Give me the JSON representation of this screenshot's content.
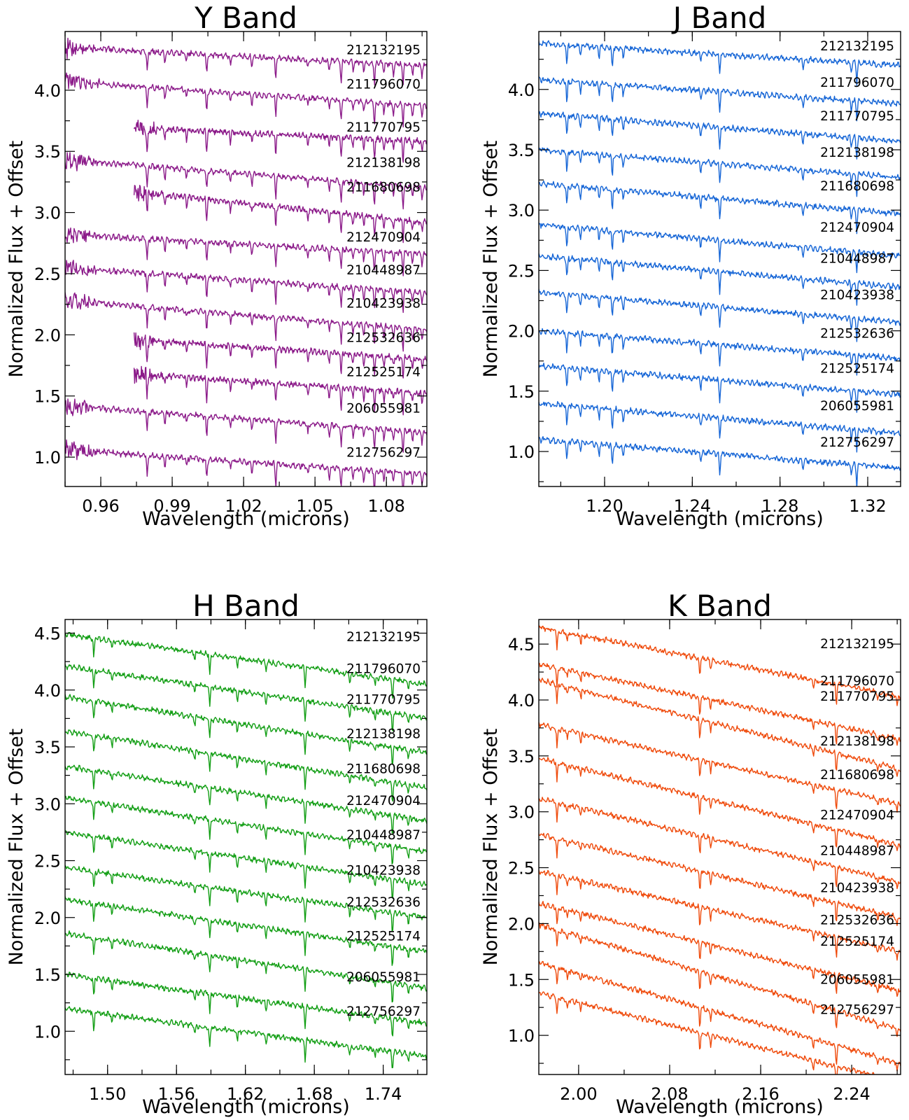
{
  "chart_data": [
    {
      "type": "line",
      "title": "Y Band",
      "xlabel": "Wavelength (microns)",
      "ylabel": "Normalized Flux + Offset",
      "color": "#8b1a89",
      "xlim": [
        0.945,
        1.097
      ],
      "ylim": [
        0.76,
        4.48
      ],
      "xticks": [
        0.96,
        0.99,
        1.02,
        1.05,
        1.08
      ],
      "xtick_labels": [
        "0.96",
        "0.99",
        "1.02",
        "1.05",
        "1.08"
      ],
      "yticks": [
        1.0,
        1.5,
        2.0,
        2.5,
        3.0,
        3.5,
        4.0
      ],
      "ytick_labels": [
        "1.0",
        "1.5",
        "2.0",
        "2.5",
        "3.0",
        "3.5",
        "4.0"
      ],
      "series": [
        {
          "name": "212132195",
          "start": 4.35,
          "end": 4.2,
          "x_start": 0.945
        },
        {
          "name": "211796070",
          "start": 4.07,
          "end": 3.87,
          "x_start": 0.945
        },
        {
          "name": "211770795",
          "start": 3.72,
          "end": 3.58,
          "x_start": 0.974
        },
        {
          "name": "212138198",
          "start": 3.43,
          "end": 3.2,
          "x_start": 0.945
        },
        {
          "name": "211680698",
          "start": 3.23,
          "end": 2.92,
          "x_start": 0.974
        },
        {
          "name": "212470904",
          "start": 2.82,
          "end": 2.66,
          "x_start": 0.945
        },
        {
          "name": "210448987",
          "start": 2.55,
          "end": 2.34,
          "x_start": 0.945
        },
        {
          "name": "210423938",
          "start": 2.28,
          "end": 2.04,
          "x_start": 0.945
        },
        {
          "name": "212532636",
          "start": 2.0,
          "end": 1.8,
          "x_start": 0.974
        },
        {
          "name": "212525174",
          "start": 1.72,
          "end": 1.52,
          "x_start": 0.974
        },
        {
          "name": "206055981",
          "start": 1.42,
          "end": 1.2,
          "x_start": 0.945
        },
        {
          "name": "212756297",
          "start": 1.06,
          "end": 0.86,
          "x_start": 0.945
        }
      ]
    },
    {
      "type": "line",
      "title": "J Band",
      "xlabel": "Wavelength (microns)",
      "ylabel": "Normalized Flux + Offset",
      "color": "#1565d6",
      "xlim": [
        1.17,
        1.335
      ],
      "ylim": [
        0.71,
        4.48
      ],
      "xticks": [
        1.2,
        1.24,
        1.28,
        1.32
      ],
      "xtick_labels": [
        "1.20",
        "1.24",
        "1.28",
        "1.32"
      ],
      "yticks": [
        1.0,
        1.5,
        2.0,
        2.5,
        3.0,
        3.5,
        4.0
      ],
      "ytick_labels": [
        "1.0",
        "1.5",
        "2.0",
        "2.5",
        "3.0",
        "3.5",
        "4.0"
      ],
      "series": [
        {
          "name": "212132195",
          "start": 4.38,
          "end": 4.2
        },
        {
          "name": "211796070",
          "start": 4.08,
          "end": 3.88
        },
        {
          "name": "211770795",
          "start": 3.8,
          "end": 3.57
        },
        {
          "name": "212138198",
          "start": 3.5,
          "end": 3.27
        },
        {
          "name": "211680698",
          "start": 3.22,
          "end": 2.97
        },
        {
          "name": "212470904",
          "start": 2.88,
          "end": 2.62
        },
        {
          "name": "210448987",
          "start": 2.62,
          "end": 2.36
        },
        {
          "name": "210423938",
          "start": 2.32,
          "end": 2.07
        },
        {
          "name": "212532636",
          "start": 2.0,
          "end": 1.77
        },
        {
          "name": "212525174",
          "start": 1.71,
          "end": 1.47
        },
        {
          "name": "206055981",
          "start": 1.4,
          "end": 1.15
        },
        {
          "name": "212756297",
          "start": 1.1,
          "end": 0.86
        }
      ]
    },
    {
      "type": "line",
      "title": "H Band",
      "xlabel": "Wavelength (microns)",
      "ylabel": "Normalized Flux + Offset",
      "color": "#129e14",
      "xlim": [
        1.463,
        1.778
      ],
      "ylim": [
        0.62,
        4.62
      ],
      "xticks": [
        1.5,
        1.56,
        1.62,
        1.68,
        1.74
      ],
      "xtick_labels": [
        "1.50",
        "1.56",
        "1.62",
        "1.68",
        "1.74"
      ],
      "yticks": [
        1.0,
        1.5,
        2.0,
        2.5,
        3.0,
        3.5,
        4.0,
        4.5
      ],
      "ytick_labels": [
        "1.0",
        "1.5",
        "2.0",
        "2.5",
        "3.0",
        "3.5",
        "4.0",
        "4.5"
      ],
      "series": [
        {
          "name": "212132195",
          "start": 4.49,
          "end": 4.05
        },
        {
          "name": "211796070",
          "start": 4.21,
          "end": 3.75
        },
        {
          "name": "211770795",
          "start": 3.94,
          "end": 3.45
        },
        {
          "name": "212138198",
          "start": 3.64,
          "end": 3.14
        },
        {
          "name": "211680698",
          "start": 3.33,
          "end": 2.85
        },
        {
          "name": "212470904",
          "start": 3.05,
          "end": 2.58
        },
        {
          "name": "210448987",
          "start": 2.75,
          "end": 2.29
        },
        {
          "name": "210423938",
          "start": 2.44,
          "end": 2.0
        },
        {
          "name": "212532636",
          "start": 2.16,
          "end": 1.7
        },
        {
          "name": "212525174",
          "start": 1.86,
          "end": 1.38
        },
        {
          "name": "206055981",
          "start": 1.5,
          "end": 1.07
        },
        {
          "name": "212756297",
          "start": 1.2,
          "end": 0.78
        }
      ]
    },
    {
      "type": "line",
      "title": "K Band",
      "xlabel": "Wavelength (microns)",
      "ylabel": "Normalized Flux + Offset",
      "color": "#ef4a0b",
      "xlim": [
        1.965,
        2.283
      ],
      "ylim": [
        0.65,
        4.72
      ],
      "xticks": [
        2.0,
        2.08,
        2.16,
        2.24
      ],
      "xtick_labels": [
        "2.00",
        "2.08",
        "2.16",
        "2.24"
      ],
      "yticks": [
        1.0,
        1.5,
        2.0,
        2.5,
        3.0,
        3.5,
        4.0,
        4.5
      ],
      "ytick_labels": [
        "1.0",
        "1.5",
        "2.0",
        "2.5",
        "3.0",
        "3.5",
        "4.0",
        "4.5"
      ],
      "series": [
        {
          "name": "212132195",
          "start": 4.65,
          "end": 4.03
        },
        {
          "name": "211796070",
          "start": 4.32,
          "end": 3.65
        },
        {
          "name": "211770795",
          "start": 4.18,
          "end": 3.38
        },
        {
          "name": "212138198",
          "start": 3.78,
          "end": 3.07
        },
        {
          "name": "211680698",
          "start": 3.48,
          "end": 2.7
        },
        {
          "name": "212470904",
          "start": 3.12,
          "end": 2.37
        },
        {
          "name": "210448987",
          "start": 2.8,
          "end": 2.05
        },
        {
          "name": "210423938",
          "start": 2.47,
          "end": 1.75
        },
        {
          "name": "212532636",
          "start": 2.18,
          "end": 1.4
        },
        {
          "name": "212525174",
          "start": 1.99,
          "end": 1.05
        },
        {
          "name": "206055981",
          "start": 1.65,
          "end": 0.75
        },
        {
          "name": "212756297",
          "start": 1.38,
          "end": 0.58
        }
      ]
    }
  ]
}
